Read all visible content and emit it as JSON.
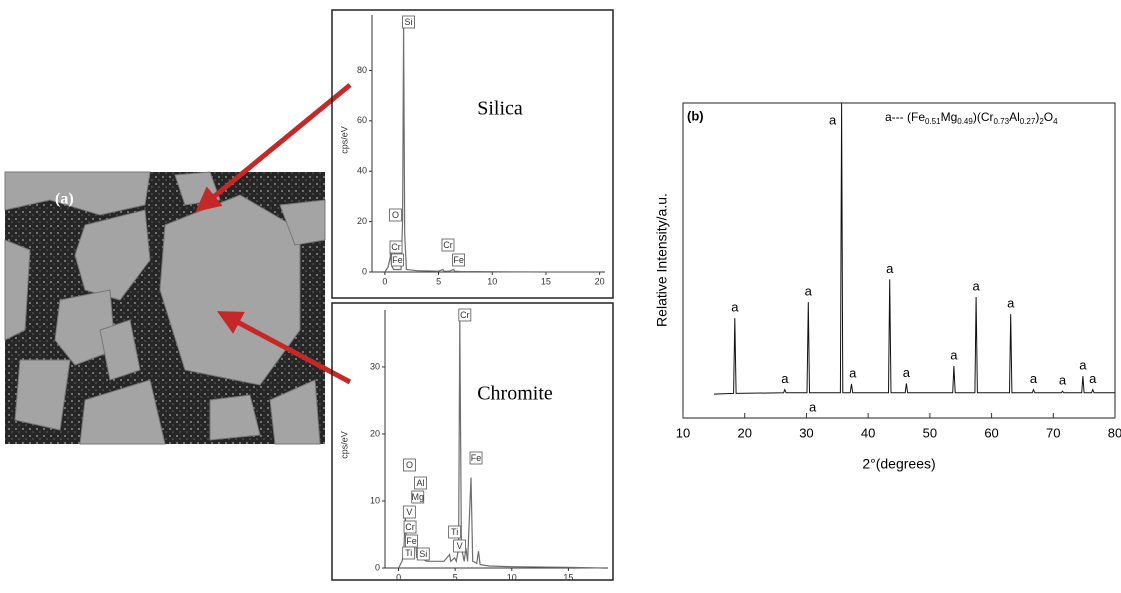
{
  "panel_a": {
    "label": "(a)",
    "silica": "Silica",
    "chromite": "Chromite"
  },
  "chart_data": [
    {
      "type": "line",
      "y_label": "cps/eV",
      "color": "#6e6e6e",
      "xlim": [
        -1.2,
        20.5
      ],
      "xticks": [
        0,
        5,
        10,
        15,
        20
      ],
      "ylim": [
        0,
        102
      ],
      "yticks": [
        0,
        20,
        40,
        60,
        80
      ],
      "x": [
        0,
        0.3,
        0.5,
        0.53,
        0.6,
        0.8,
        1.0,
        1.5,
        1.65,
        1.74,
        1.85,
        2.0,
        3,
        5,
        5.4,
        5.5,
        6,
        6.4,
        6.5,
        7,
        10,
        15,
        20
      ],
      "values": [
        0,
        2,
        6,
        9,
        3,
        1,
        1,
        1,
        20,
        98,
        15,
        1,
        0.5,
        0.3,
        1,
        0.3,
        0.3,
        1,
        0.3,
        0.2,
        0.1,
        0,
        0
      ],
      "peak_labels": [
        {
          "text": "Si",
          "x": 1.74
        },
        {
          "text": "O",
          "x": 0.52
        },
        {
          "text": "Cr",
          "x": 0.57
        },
        {
          "text": "Fe",
          "x": 0.7
        },
        {
          "text": "Cr",
          "x": 5.41
        },
        {
          "text": "Fe",
          "x": 6.4
        }
      ]
    },
    {
      "type": "line",
      "y_label": "cps/eV",
      "color": "#6e6e6e",
      "xlim": [
        -1.2,
        18.5
      ],
      "xticks": [
        0,
        5,
        10,
        15
      ],
      "ylim": [
        0,
        38.5
      ],
      "yticks": [
        0,
        10,
        20,
        30
      ],
      "x": [
        0,
        0.3,
        0.45,
        0.52,
        0.6,
        0.7,
        0.9,
        1.0,
        1.25,
        1.35,
        1.49,
        1.6,
        1.74,
        1.9,
        2.5,
        4.0,
        4.51,
        4.6,
        4.95,
        5.1,
        5.3,
        5.41,
        5.55,
        5.8,
        5.95,
        6.1,
        6.4,
        6.55,
        6.9,
        7.06,
        7.2,
        8,
        10,
        15,
        18
      ],
      "values": [
        0,
        1,
        2,
        5,
        8,
        3,
        2,
        1.5,
        4,
        2,
        5,
        1.5,
        2,
        1.5,
        1,
        1,
        2,
        1,
        1.5,
        1,
        3,
        37,
        3,
        1,
        3,
        1,
        13.5,
        1,
        0.7,
        2.5,
        0.5,
        0.3,
        0.2,
        0.1,
        0
      ],
      "peak_labels": [
        {
          "text": "Cr",
          "x": 5.41
        },
        {
          "text": "Fe",
          "x": 6.4
        },
        {
          "text": "O",
          "x": 0.52
        },
        {
          "text": "Al",
          "x": 1.49
        },
        {
          "text": "Mg",
          "x": 1.25
        },
        {
          "text": "V",
          "x": 0.51
        },
        {
          "text": "Cr",
          "x": 0.57
        },
        {
          "text": "Fe",
          "x": 0.7
        },
        {
          "text": "Ti",
          "x": 0.45
        },
        {
          "text": "Si",
          "x": 1.74
        },
        {
          "text": "Ti",
          "x": 4.51
        },
        {
          "text": "V",
          "x": 4.95
        }
      ]
    },
    {
      "type": "line",
      "panel_label": "(b)",
      "x_label": "2°(degrees)",
      "y_label": "Relative Intensity/a.u.",
      "color": "#111111",
      "legend_parts": [
        "a--- (Fe",
        "0.51",
        "Mg",
        "0.49",
        ")(Cr",
        "0.73",
        "Al",
        "0.27",
        ")",
        "2",
        "O",
        "4"
      ],
      "xlim": [
        10,
        80
      ],
      "xticks": [
        10,
        20,
        30,
        40,
        50,
        60,
        70,
        80
      ],
      "ylim": [
        0,
        100
      ],
      "x": [
        15,
        18.2,
        18.4,
        18.6,
        26.3,
        26.5,
        26.7,
        30.1,
        30.3,
        30.5,
        35.5,
        35.7,
        35.9,
        37.1,
        37.3,
        37.5,
        43.3,
        43.5,
        43.7,
        46,
        46.2,
        46.4,
        53.7,
        53.9,
        54.1,
        57.3,
        57.5,
        57.7,
        62.9,
        63.1,
        63.3,
        66.6,
        66.8,
        67,
        71.3,
        71.5,
        71.7,
        74.6,
        74.8,
        75,
        76.2,
        76.4,
        76.6,
        80
      ],
      "values": [
        7.6,
        7.8,
        31.7,
        7.8,
        8,
        9,
        8,
        8,
        36.8,
        8,
        8,
        100,
        8,
        8,
        10.8,
        8,
        8,
        44,
        8,
        8,
        11,
        8,
        8,
        16.5,
        8,
        8,
        38.4,
        8,
        8,
        33,
        8,
        8,
        9,
        8,
        8,
        8.5,
        8,
        8,
        13.3,
        8,
        8,
        9,
        8,
        8
      ],
      "peak_labels": [
        {
          "text": "a",
          "x": 18.4
        },
        {
          "text": "a",
          "x": 26.5
        },
        {
          "text": "a",
          "x": 30.3
        },
        {
          "text": "a",
          "x": 31
        },
        {
          "text": "a",
          "x": 35.7
        },
        {
          "text": "a",
          "x": 37.5
        },
        {
          "text": "a",
          "x": 43.5
        },
        {
          "text": "a",
          "x": 46.2
        },
        {
          "text": "a",
          "x": 53.9
        },
        {
          "text": "a",
          "x": 57.5
        },
        {
          "text": "a",
          "x": 63.1
        },
        {
          "text": "a",
          "x": 66.8
        },
        {
          "text": "a",
          "x": 71.5
        },
        {
          "text": "a",
          "x": 74.8
        },
        {
          "text": "a",
          "x": 76.4
        }
      ]
    }
  ]
}
